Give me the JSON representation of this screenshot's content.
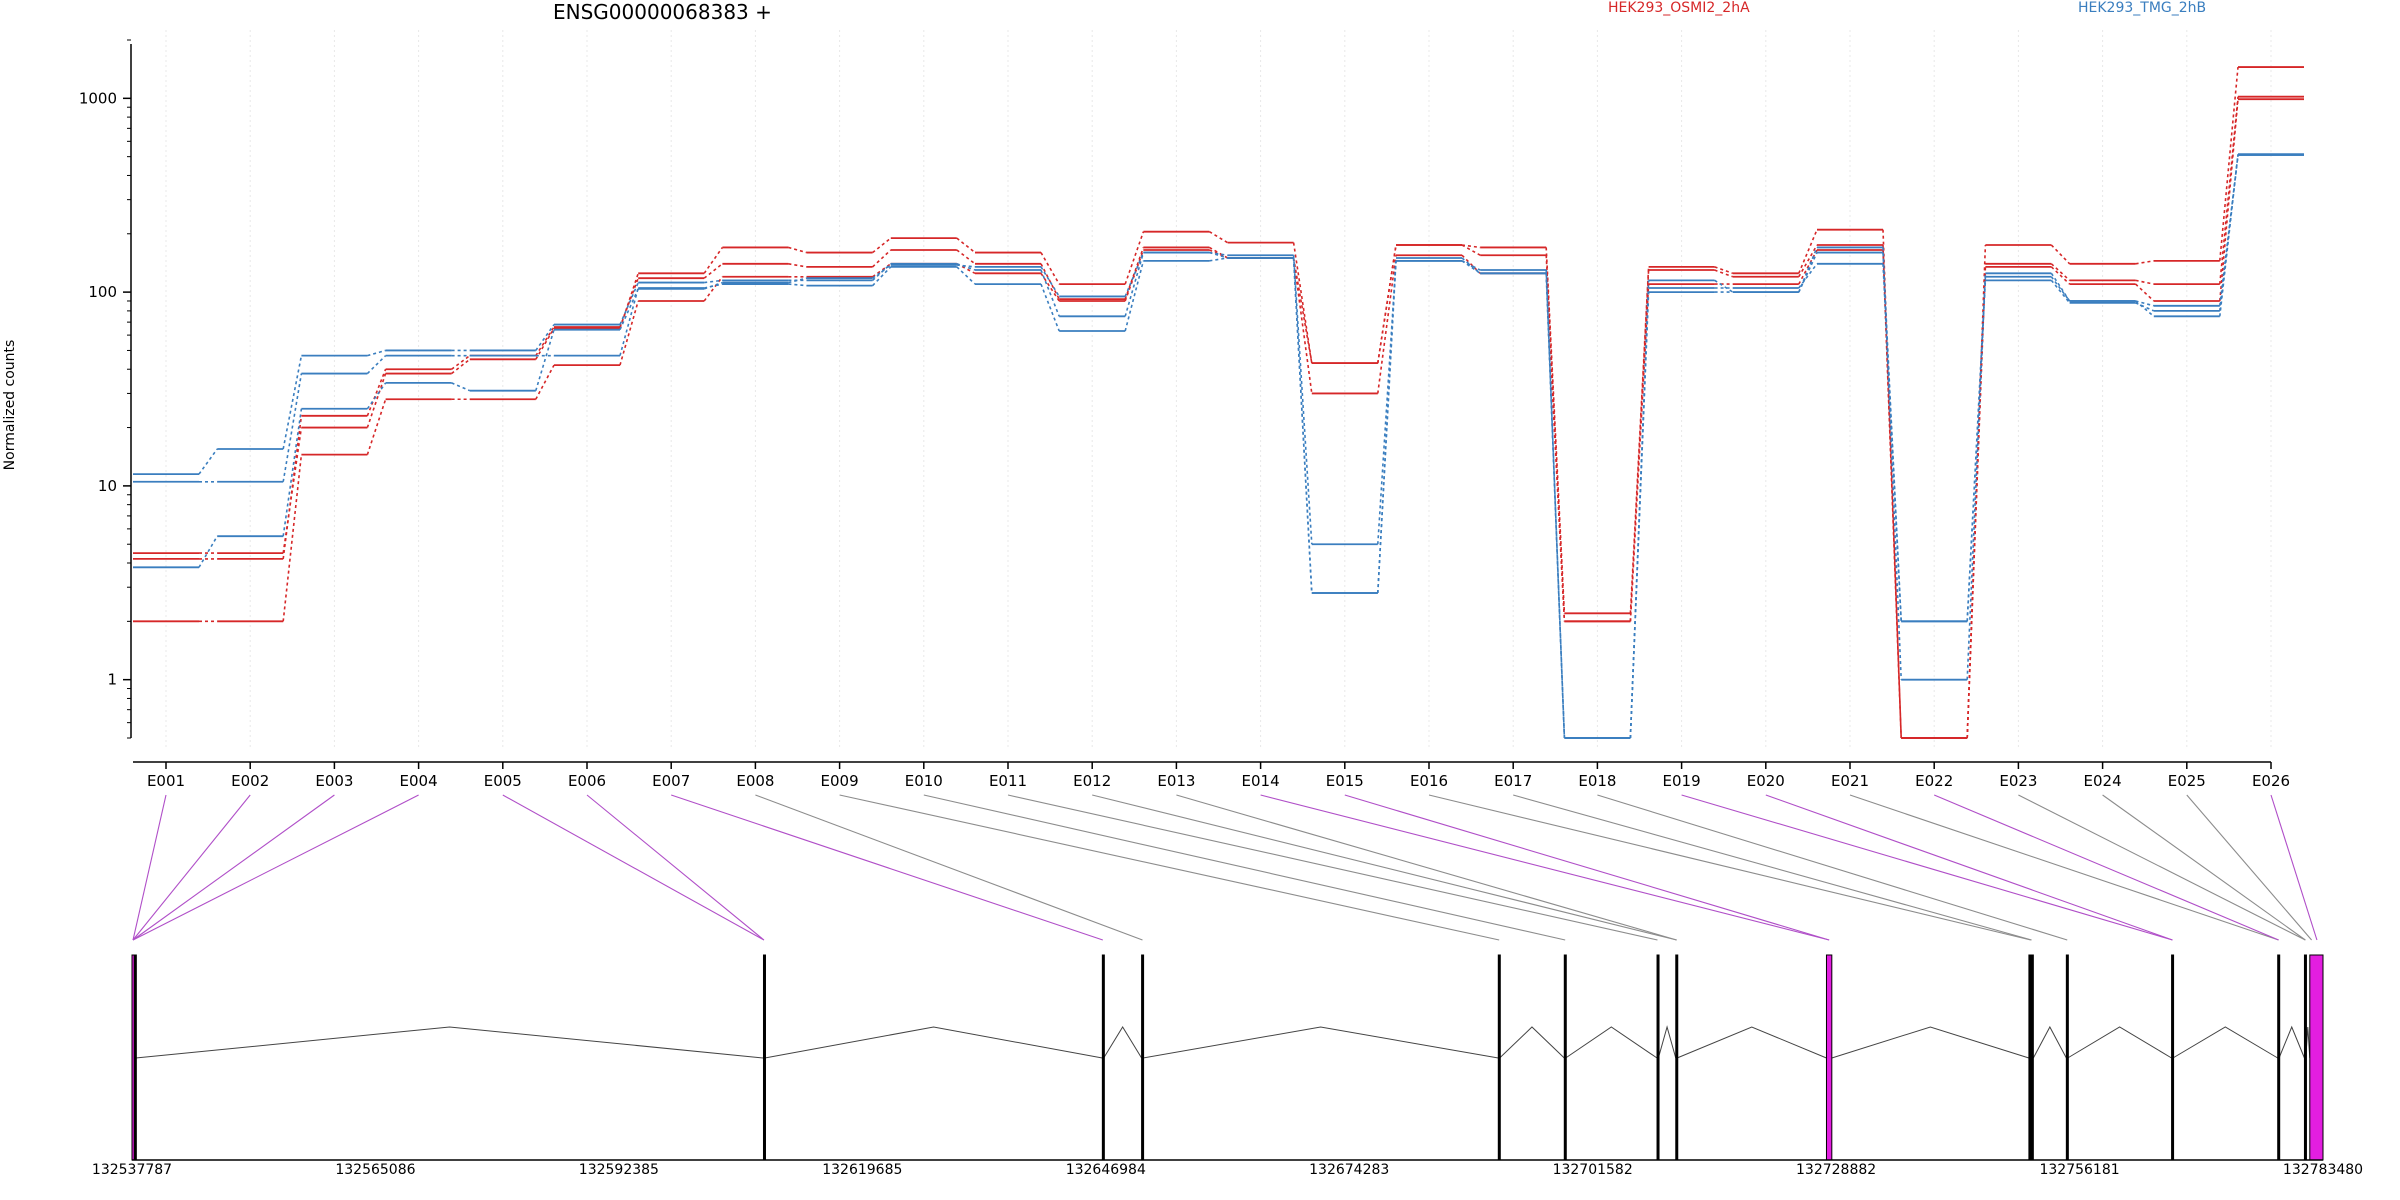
{
  "title": "ENSG00000068383 +",
  "ylabel": "Normalized counts",
  "legend": [
    {
      "name": "HEK293_OSMI2_2hA",
      "color": "#d62728"
    },
    {
      "name": "HEK293_TMG_2hB",
      "color": "#3a7ebf"
    }
  ],
  "colors": {
    "red": "#d62728",
    "blue": "#3a7ebf",
    "exon_highlight": "#e31ee0",
    "connector_highlight": "#b04fc8",
    "connector_plain": "#8c8c8c"
  },
  "chart_data": {
    "type": "line",
    "yscale": "log",
    "ylim": [
      0.5,
      2000
    ],
    "yticks": [
      1,
      10,
      100,
      1000
    ],
    "ytick_labels": [
      "1",
      "10",
      "100",
      "1000"
    ],
    "categories": [
      "E001",
      "E002",
      "E003",
      "E004",
      "E005",
      "E006",
      "E007",
      "E008",
      "E009",
      "E010",
      "E011",
      "E012",
      "E013",
      "E014",
      "E015",
      "E016",
      "E017",
      "E018",
      "E019",
      "E020",
      "E021",
      "E022",
      "E023",
      "E024",
      "E025",
      "E026"
    ],
    "series": [
      {
        "group": "HEK293_OSMI2_2hA",
        "color": "#d62728",
        "values": [
          4.5,
          4.5,
          20,
          38,
          45,
          65,
          125,
          170,
          160,
          190,
          160,
          110,
          205,
          180,
          43,
          175,
          170,
          2.2,
          135,
          125,
          210,
          0.5,
          175,
          140,
          145,
          1450
        ]
      },
      {
        "group": "HEK293_OSMI2_2hA",
        "color": "#d62728",
        "values": [
          4.2,
          4.2,
          23,
          40,
          47,
          66,
          118,
          140,
          135,
          165,
          140,
          92,
          170,
          150,
          43,
          175,
          155,
          2.0,
          130,
          120,
          175,
          0.5,
          140,
          115,
          110,
          1020
        ]
      },
      {
        "group": "HEK293_OSMI2_2hA",
        "color": "#d62728",
        "values": [
          2.0,
          2.0,
          14.5,
          28,
          28,
          42,
          90,
          120,
          120,
          140,
          125,
          90,
          165,
          150,
          30,
          155,
          125,
          2.0,
          110,
          110,
          165,
          0.5,
          135,
          110,
          90,
          990
        ]
      },
      {
        "group": "HEK293_TMG_2hB",
        "color": "#3a7ebf",
        "values": [
          11.5,
          15.5,
          47,
          50,
          50,
          68,
          112,
          115,
          115,
          140,
          130,
          75,
          160,
          155,
          5.0,
          145,
          130,
          0.5,
          100,
          100,
          160,
          2.0,
          120,
          90,
          85,
          510
        ]
      },
      {
        "group": "HEK293_TMG_2hB",
        "color": "#3a7ebf",
        "values": [
          10.5,
          10.5,
          38,
          47,
          47,
          47,
          105,
          110,
          108,
          135,
          110,
          63,
          145,
          150,
          2.8,
          150,
          125,
          0.5,
          105,
          105,
          140,
          2.0,
          115,
          88,
          80,
          510
        ]
      },
      {
        "group": "HEK293_TMG_2hB",
        "color": "#3a7ebf",
        "values": [
          3.8,
          5.5,
          25,
          34,
          31,
          64,
          104,
          112,
          118,
          138,
          135,
          95,
          160,
          150,
          2.8,
          145,
          125,
          0.5,
          115,
          100,
          170,
          1.0,
          125,
          90,
          75,
          515
        ]
      }
    ],
    "genomic_ticks": [
      "132537787",
      "132565086",
      "132592385",
      "132619685",
      "132646984",
      "132674283",
      "132701582",
      "132728882",
      "132756181",
      "132783480"
    ],
    "genome_range": [
      132537787,
      132783480
    ],
    "exons": [
      {
        "start": 132537787,
        "end": 132538050,
        "highlight": true
      },
      {
        "start": 132538050,
        "end": 132538200,
        "highlight": false
      },
      {
        "start": 132608600,
        "end": 132608750,
        "highlight": false
      },
      {
        "start": 132646600,
        "end": 132646750,
        "highlight": false
      },
      {
        "start": 132651000,
        "end": 132651150,
        "highlight": false
      },
      {
        "start": 132691000,
        "end": 132691150,
        "highlight": false
      },
      {
        "start": 132698400,
        "end": 132698550,
        "highlight": false
      },
      {
        "start": 132708800,
        "end": 132708950,
        "highlight": false
      },
      {
        "start": 132710900,
        "end": 132711050,
        "highlight": false
      },
      {
        "start": 132727800,
        "end": 132728400,
        "highlight": true
      },
      {
        "start": 132750500,
        "end": 132751000,
        "highlight": false
      },
      {
        "start": 132754700,
        "end": 132754850,
        "highlight": false
      },
      {
        "start": 132766500,
        "end": 132766650,
        "highlight": false
      },
      {
        "start": 132778400,
        "end": 132778550,
        "highlight": false
      },
      {
        "start": 132781400,
        "end": 132781550,
        "highlight": false
      },
      {
        "start": 132782000,
        "end": 132783480,
        "highlight": true
      }
    ],
    "connector_targets": [
      {
        "pos": 132537900,
        "highlight": true
      },
      {
        "pos": 132537900,
        "highlight": true
      },
      {
        "pos": 132537900,
        "highlight": true
      },
      {
        "pos": 132537900,
        "highlight": true
      },
      {
        "pos": 132608650,
        "highlight": true
      },
      {
        "pos": 132608650,
        "highlight": true
      },
      {
        "pos": 132646650,
        "highlight": true
      },
      {
        "pos": 132651100,
        "highlight": false
      },
      {
        "pos": 132691100,
        "highlight": false
      },
      {
        "pos": 132698500,
        "highlight": false
      },
      {
        "pos": 132708850,
        "highlight": false
      },
      {
        "pos": 132711000,
        "highlight": false
      },
      {
        "pos": 132711000,
        "highlight": false
      },
      {
        "pos": 132728100,
        "highlight": true
      },
      {
        "pos": 132728100,
        "highlight": true
      },
      {
        "pos": 132750700,
        "highlight": false
      },
      {
        "pos": 132750800,
        "highlight": false
      },
      {
        "pos": 132754800,
        "highlight": false
      },
      {
        "pos": 132766600,
        "highlight": true
      },
      {
        "pos": 132766600,
        "highlight": true
      },
      {
        "pos": 132778500,
        "highlight": false
      },
      {
        "pos": 132778500,
        "highlight": true
      },
      {
        "pos": 132781500,
        "highlight": false
      },
      {
        "pos": 132781500,
        "highlight": false
      },
      {
        "pos": 132782200,
        "highlight": false
      },
      {
        "pos": 132782800,
        "highlight": true
      }
    ]
  }
}
